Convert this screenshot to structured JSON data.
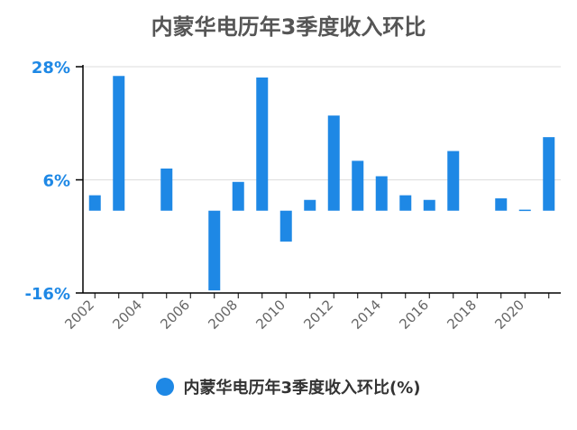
{
  "colors": {
    "bar": "#1e88e5",
    "ytick": "#1e88e5",
    "xtick": "#666666",
    "grid": "#dddddd",
    "axis": "#000000"
  },
  "chart_data": {
    "type": "bar",
    "title": "内蒙华电历年3季度收入环比",
    "legend": "内蒙华电历年3季度收入环比(%)",
    "legend_position": "bottom",
    "x": [
      2002,
      2003,
      2004,
      2005,
      2006,
      2007,
      2008,
      2009,
      2010,
      2011,
      2012,
      2013,
      2014,
      2015,
      2016,
      2017,
      2018,
      2019,
      2020,
      2021
    ],
    "values": [
      3.0,
      26.2,
      0,
      8.2,
      0,
      -15.5,
      5.6,
      25.9,
      -6.0,
      2.1,
      18.5,
      9.7,
      6.7,
      3.0,
      2.1,
      11.6,
      0,
      2.4,
      0.2,
      14.3
    ],
    "xticks": [
      "2002",
      "2004",
      "2006",
      "2008",
      "2010",
      "2012",
      "2014",
      "2016",
      "2018",
      "2020"
    ],
    "yticks": [
      "28%",
      "6%",
      "-16%"
    ],
    "ylim": [
      -16,
      28
    ],
    "grid": true
  }
}
